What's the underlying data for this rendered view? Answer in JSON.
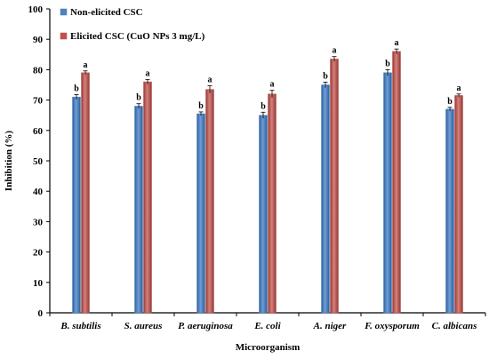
{
  "chart_data": {
    "type": "bar",
    "xlabel": "Microorganism",
    "ylabel": "Inhibition  (%)",
    "ylim": [
      0,
      100
    ],
    "yticks": [
      0,
      10,
      20,
      30,
      40,
      50,
      60,
      70,
      80,
      90,
      100
    ],
    "grid": false,
    "legend_position": "top-left",
    "categories": [
      "B. subtilis",
      "S. aureus",
      "P. aeruginosa",
      "E. coli",
      "A. niger",
      "F. oxysporum",
      "C. albicans"
    ],
    "series": [
      {
        "name": "Non-elicited CSC",
        "color": "#4f81bd",
        "values": [
          71,
          68,
          65.5,
          65,
          75,
          79,
          67
        ],
        "errors": [
          0.8,
          0.8,
          0.6,
          1.0,
          0.9,
          1.0,
          0.6
        ],
        "sig_labels": [
          "b",
          "b",
          "b",
          "b",
          "b",
          "b",
          "b"
        ]
      },
      {
        "name": "Elicited CSC (CuO NPs 3 mg/L)",
        "color": "#c0504d",
        "values": [
          79,
          76,
          73.5,
          72,
          83.5,
          86,
          71.5
        ],
        "errors": [
          0.6,
          0.8,
          1.2,
          1.2,
          0.8,
          0.8,
          0.5
        ],
        "sig_labels": [
          "a",
          "a",
          "a",
          "a",
          "a",
          "a",
          "a"
        ]
      }
    ]
  }
}
